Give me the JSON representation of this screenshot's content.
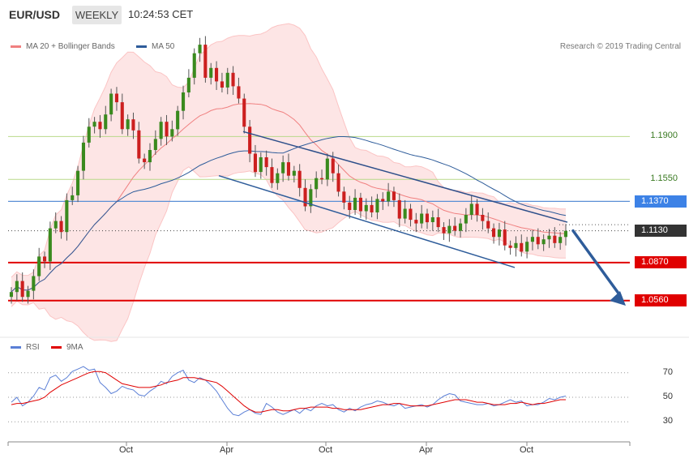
{
  "header": {
    "symbol": "EUR/USD",
    "timeframe": "WEEKLY",
    "time": "10:24:53 CET"
  },
  "legend": {
    "ma20_label": "MA 20 + Bollinger Bands",
    "ma20_color": "#f08080",
    "ma50_label": "MA 50",
    "ma50_color": "#2e5c9a"
  },
  "credit": "Research © 2019 Trading Central",
  "rsi_legend": {
    "rsi_label": "RSI",
    "rsi_color": "#5b7fd6",
    "ma_label": "9MA",
    "ma_color": "#e00000"
  },
  "chart_data": [
    {
      "type": "candlestick",
      "title": "",
      "x_tick_labels": [
        "Oct",
        "Apr",
        "Oct",
        "Apr",
        "Oct"
      ],
      "levels": [
        {
          "value": 1.19,
          "label": "1.1900",
          "style": "green-line"
        },
        {
          "value": 1.155,
          "label": "1.1550",
          "style": "green-line"
        },
        {
          "value": 1.137,
          "label": "1.1370",
          "style": "blue-line"
        },
        {
          "value": 1.113,
          "label": "1.1130",
          "style": "current-price"
        },
        {
          "value": 1.087,
          "label": "1.0870",
          "style": "red-line"
        },
        {
          "value": 1.056,
          "label": "1.0560",
          "style": "red-line"
        }
      ],
      "closes": [
        1.063,
        1.072,
        1.059,
        1.064,
        1.076,
        1.092,
        1.088,
        1.115,
        1.121,
        1.112,
        1.138,
        1.142,
        1.162,
        1.185,
        1.198,
        1.202,
        1.196,
        1.208,
        1.225,
        1.218,
        1.196,
        1.204,
        1.195,
        1.172,
        1.169,
        1.179,
        1.188,
        1.202,
        1.19,
        1.196,
        1.211,
        1.226,
        1.238,
        1.258,
        1.265,
        1.238,
        1.246,
        1.235,
        1.23,
        1.242,
        1.231,
        1.221,
        1.198,
        1.176,
        1.161,
        1.173,
        1.165,
        1.152,
        1.16,
        1.169,
        1.158,
        1.162,
        1.148,
        1.133,
        1.147,
        1.156,
        1.155,
        1.172,
        1.16,
        1.145,
        1.136,
        1.13,
        1.14,
        1.129,
        1.134,
        1.128,
        1.139,
        1.137,
        1.145,
        1.138,
        1.123,
        1.131,
        1.122,
        1.119,
        1.127,
        1.12,
        1.124,
        1.116,
        1.111,
        1.117,
        1.113,
        1.119,
        1.126,
        1.135,
        1.126,
        1.121,
        1.115,
        1.108,
        1.114,
        1.101,
        1.099,
        1.103,
        1.096,
        1.104,
        1.108,
        1.102,
        1.106,
        1.109,
        1.103,
        1.108,
        1.113
      ],
      "y_range": [
        1.03,
        1.275
      ]
    },
    {
      "type": "line",
      "title": "RSI",
      "y_ticks": [
        30,
        50,
        70
      ],
      "y_range": [
        17,
        83
      ],
      "series": [
        {
          "name": "RSI",
          "values": [
            46,
            50,
            43,
            46,
            51,
            58,
            56,
            66,
            68,
            63,
            66,
            71,
            73,
            75,
            72,
            73,
            62,
            58,
            53,
            55,
            59,
            57,
            56,
            52,
            51,
            55,
            58,
            63,
            61,
            67,
            70,
            72,
            64,
            62,
            66,
            64,
            60,
            55,
            48,
            41,
            36,
            35,
            38,
            40,
            37,
            36,
            45,
            42,
            38,
            36,
            38,
            40,
            37,
            41,
            39,
            43,
            45,
            43,
            44,
            40,
            38,
            41,
            39,
            42,
            44,
            45,
            47,
            46,
            44,
            43,
            45,
            41,
            42,
            43,
            44,
            42,
            44,
            48,
            51,
            53,
            52,
            47,
            46,
            45,
            44,
            44,
            45,
            43,
            44,
            46,
            48,
            46,
            47,
            43,
            44,
            44,
            46,
            49,
            48,
            50,
            51
          ]
        },
        {
          "name": "9MA",
          "values": [
            44,
            45,
            45,
            46,
            47,
            48,
            50,
            54,
            57,
            60,
            62,
            64,
            66,
            68,
            70,
            71,
            71,
            70,
            67,
            64,
            61,
            60,
            59,
            58,
            58,
            58,
            59,
            60,
            62,
            63,
            64,
            66,
            66,
            66,
            65,
            64,
            63,
            62,
            59,
            55,
            51,
            47,
            43,
            40,
            38,
            38,
            39,
            40,
            40,
            39,
            39,
            40,
            41,
            41,
            42,
            42,
            42,
            42,
            41,
            41,
            40,
            40,
            40,
            40,
            41,
            42,
            43,
            44,
            44,
            45,
            45,
            44,
            43,
            43,
            43,
            43,
            44,
            45,
            46,
            47,
            48,
            48,
            48,
            47,
            46,
            46,
            45,
            44,
            44,
            44,
            45,
            45,
            46,
            45,
            44,
            45,
            45,
            46,
            47,
            48,
            48
          ]
        }
      ]
    }
  ]
}
